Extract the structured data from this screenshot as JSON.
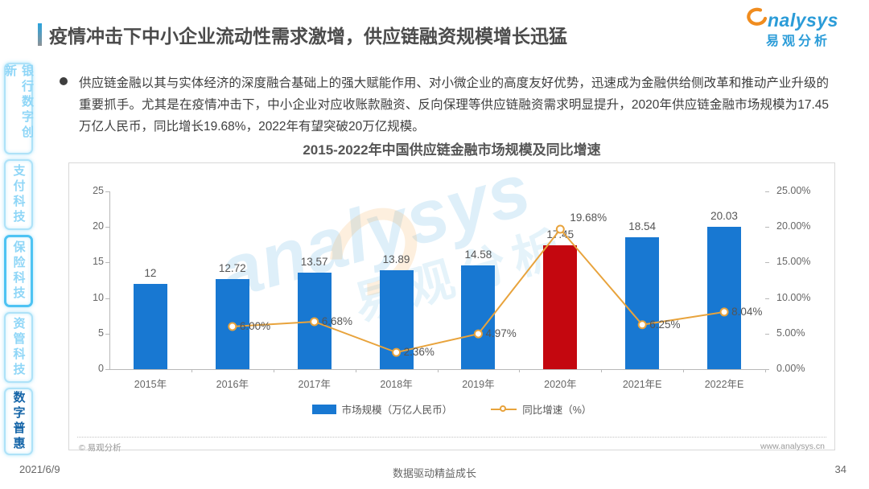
{
  "header": {
    "title": "疫情冲击下中小企业流动性需求激增，供应链融资规模增长迅猛",
    "accent_color": "#29a3dd",
    "logo": {
      "brand": "nalysys",
      "brand_cn": "易观分析",
      "brand_color": "#2b9cd8",
      "swoosh_color": "#f08c1e"
    }
  },
  "sidebar": {
    "items": [
      {
        "label": "银行数字创新",
        "state": "normal"
      },
      {
        "label": "支付科技",
        "state": "normal"
      },
      {
        "label": "保险科技",
        "state": "outlined"
      },
      {
        "label": "资管科技",
        "state": "normal"
      },
      {
        "label": "数字普惠",
        "state": "active"
      }
    ]
  },
  "summary": {
    "bullet_text": "供应链金融以其与实体经济的深度融合基础上的强大赋能作用、对小微企业的高度友好优势，迅速成为金融供给侧改革和推动产业升级的重要抓手。尤其是在疫情冲击下，中小企业对应收账款融资、反向保理等供应链融资需求明显提升，2020年供应链金融市场规模为17.45万亿人民币，同比增长19.68%，2022年有望突破20万亿规模。"
  },
  "chart_data": {
    "type": "bar+line",
    "title": "2015-2022年中国供应链金融市场规模及同比增速",
    "categories": [
      "2015年",
      "2016年",
      "2017年",
      "2018年",
      "2019年",
      "2020年",
      "2021年E",
      "2022年E"
    ],
    "series": [
      {
        "name": "市场规模（万亿人民币）",
        "type": "bar",
        "axis": "left",
        "values": [
          12,
          12.72,
          13.57,
          13.89,
          14.58,
          17.45,
          18.54,
          20.03
        ],
        "labels": [
          "12",
          "12.72",
          "13.57",
          "13.89",
          "14.58",
          "17.45",
          "18.54",
          "20.03"
        ],
        "color": "#1878d2",
        "highlight_index": 5,
        "highlight_color": "#c4070f"
      },
      {
        "name": "同比增速（%）",
        "type": "line",
        "axis": "right",
        "values": [
          null,
          6.0,
          6.68,
          2.36,
          4.97,
          19.68,
          6.25,
          8.04
        ],
        "labels": [
          "",
          "6.00%",
          "6.68%",
          "2.36%",
          "4.97%",
          "19.68%",
          "6.25%",
          "8.04%"
        ],
        "color": "#e8a33c"
      }
    ],
    "left_axis": {
      "min": 0,
      "max": 25,
      "ticks": [
        0,
        5,
        10,
        15,
        20,
        25
      ],
      "tick_labels": [
        "0",
        "5",
        "10",
        "15",
        "20",
        "25"
      ]
    },
    "right_axis": {
      "min": 0,
      "max": 25,
      "ticks": [
        0,
        5,
        10,
        15,
        20,
        25
      ],
      "tick_labels": [
        "0.00%",
        "5.00%",
        "10.00%",
        "15.00%",
        "20.00%",
        "25.00%"
      ]
    },
    "legend_position": "bottom",
    "grid": false
  },
  "watermark": {
    "text": "analysys",
    "text_cn": "易观分析"
  },
  "panel_footer": {
    "copyright": "© 易观分析",
    "website": "www.analysys.cn"
  },
  "page_footer": {
    "date": "2021/6/9",
    "slogan": "数据驱动精益成长",
    "page_number": "34"
  }
}
